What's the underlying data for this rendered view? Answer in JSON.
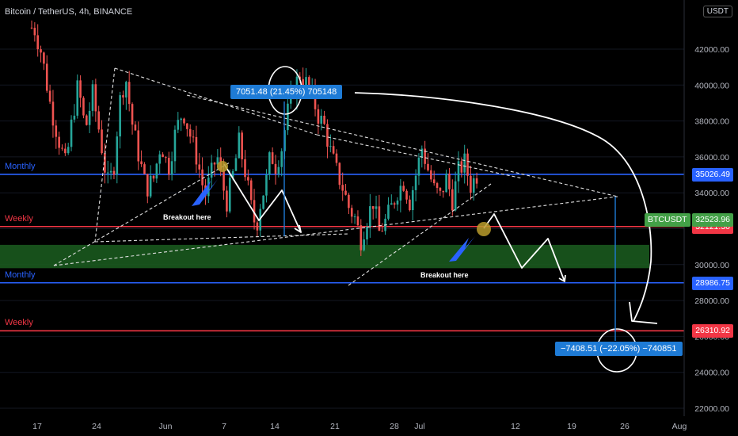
{
  "header": {
    "title": "Bitcoin / TetherUS, 4h, BINANCE"
  },
  "currency_button": "USDT",
  "colors": {
    "monthly": "#2962ff",
    "weekly": "#f23645",
    "zone": "#1b5e20",
    "price": "#43a047",
    "measure": "#1e7bd6"
  },
  "chart_data": {
    "type": "candlestick",
    "symbol": "BTCUSDT",
    "interval": "4h",
    "exchange": "BINANCE",
    "ylim": [
      21500,
      45000
    ],
    "y_ticks": [
      "22000.00",
      "24000.00",
      "26000.00",
      "28000.00",
      "30000.00",
      "32000.00",
      "34000.00",
      "36000.00",
      "38000.00",
      "40000.00",
      "42000.00"
    ],
    "x_ticks": [
      "17",
      "24",
      "Jun",
      "7",
      "14",
      "21",
      "28",
      "Jul",
      "12",
      "19",
      "26",
      "Aug"
    ],
    "ohlc_path": [
      [
        0.2,
        43200
      ],
      [
        0.8,
        41800
      ],
      [
        1.5,
        39000
      ],
      [
        2.2,
        37000
      ],
      [
        2.8,
        35500
      ],
      [
        3.3,
        38000
      ],
      [
        3.8,
        40000
      ],
      [
        4.4,
        37500
      ],
      [
        5.0,
        39500
      ],
      [
        5.6,
        37200
      ],
      [
        6.2,
        34500
      ],
      [
        6.7,
        35200
      ],
      [
        7.2,
        39000
      ],
      [
        7.7,
        40500
      ],
      [
        8.2,
        38000
      ],
      [
        8.8,
        36000
      ],
      [
        9.4,
        34200
      ],
      [
        10.0,
        34800
      ],
      [
        10.6,
        36800
      ],
      [
        11.2,
        35300
      ],
      [
        11.8,
        37400
      ],
      [
        12.4,
        38600
      ],
      [
        13.0,
        37200
      ],
      [
        13.6,
        35800
      ],
      [
        14.2,
        33800
      ],
      [
        14.8,
        35200
      ],
      [
        15.2,
        36100
      ],
      [
        15.6,
        34600
      ],
      [
        16.0,
        33500
      ],
      [
        16.5,
        35000
      ],
      [
        17.0,
        36800
      ],
      [
        17.5,
        35200
      ],
      [
        18.0,
        33200
      ],
      [
        18.4,
        32000
      ],
      [
        18.8,
        33600
      ],
      [
        19.2,
        34500
      ],
      [
        19.6,
        36200
      ],
      [
        20.0,
        35500
      ],
      [
        20.5,
        36500
      ],
      [
        21.0,
        38500
      ],
      [
        21.5,
        39800
      ],
      [
        22.0,
        40600
      ],
      [
        22.5,
        40100
      ],
      [
        23.0,
        39400
      ],
      [
        23.5,
        38300
      ],
      [
        24.0,
        37700
      ],
      [
        24.5,
        36300
      ],
      [
        25.0,
        35200
      ],
      [
        25.5,
        34300
      ],
      [
        26.0,
        33200
      ],
      [
        26.5,
        32600
      ],
      [
        27.0,
        31400
      ],
      [
        27.5,
        32600
      ],
      [
        28.0,
        33500
      ],
      [
        28.5,
        31800
      ],
      [
        29.0,
        32400
      ],
      [
        29.5,
        33200
      ],
      [
        30.0,
        34100
      ],
      [
        30.5,
        34600
      ],
      [
        31.0,
        33500
      ],
      [
        31.5,
        35000
      ],
      [
        32.0,
        36500
      ],
      [
        32.5,
        35300
      ],
      [
        33.0,
        34200
      ],
      [
        33.5,
        33800
      ],
      [
        34.0,
        34800
      ],
      [
        34.5,
        33600
      ],
      [
        35.0,
        35200
      ],
      [
        35.5,
        35700
      ],
      [
        36.0,
        34400
      ],
      [
        36.5,
        35000
      ],
      [
        37.0,
        34200
      ],
      [
        37.6,
        33400
      ]
    ],
    "levels": [
      {
        "label": "Monthly",
        "price": 35026.49,
        "value_text": "35026.49",
        "color": "#2962ff"
      },
      {
        "label": "Weekly",
        "price": 32121.3,
        "value_text": "32121.30",
        "color": "#f23645"
      },
      {
        "label": "Monthly",
        "price": 28986.75,
        "value_text": "28986.75",
        "color": "#2962ff"
      },
      {
        "label": "Weekly",
        "price": 26310.92,
        "value_text": "26310.92",
        "color": "#f23645"
      }
    ],
    "last_price": {
      "symbol": "BTCUSDT",
      "value": 32523.96,
      "value_text": "32523.96"
    },
    "zone": {
      "from": 29800,
      "to": 31100
    },
    "measure_up": {
      "text": "7051.48 (21.45%) 705148"
    },
    "measure_down": {
      "text": "−7408.51 (−22.05%) −740851"
    },
    "annotations": [
      "Breakout here",
      "Breakout here"
    ]
  }
}
